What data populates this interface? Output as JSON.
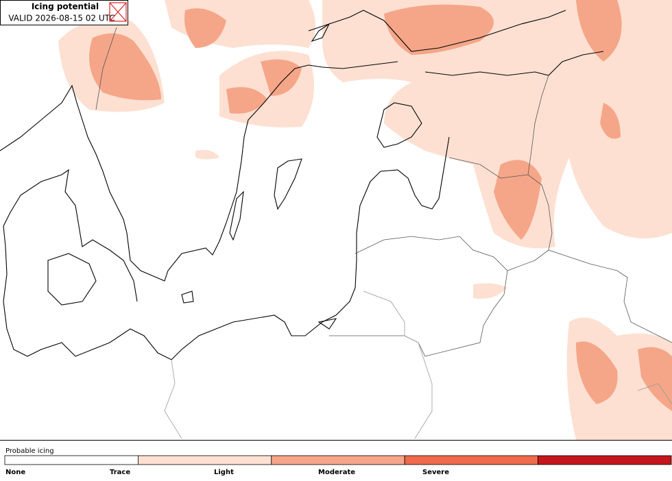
{
  "header": {
    "title": "Icing potential",
    "valid": "VALID 2026-08-15 02 UTC"
  },
  "legend": {
    "title": "Probable icing",
    "items": [
      {
        "label": "None",
        "color": "#ffffff"
      },
      {
        "label": "Trace",
        "color": "#fde0d2"
      },
      {
        "label": "Light",
        "color": "#f5a688"
      },
      {
        "label": "Moderate",
        "color": "#ef6a4a"
      },
      {
        "label": "Severe",
        "color": "#c4161c"
      }
    ]
  }
}
